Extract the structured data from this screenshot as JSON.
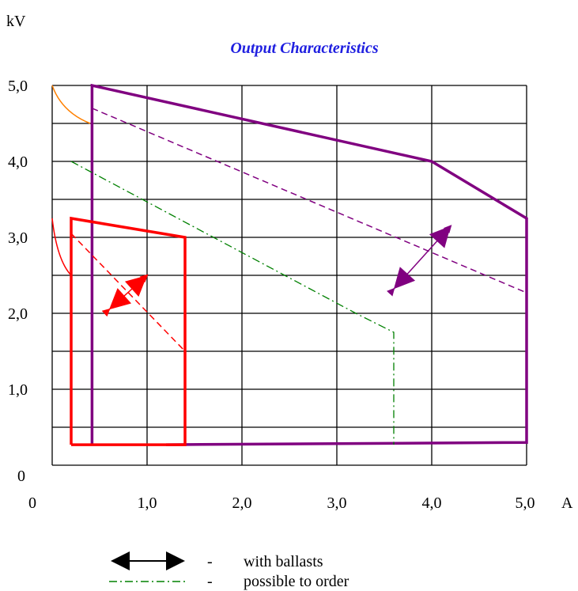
{
  "chart_data": {
    "type": "line",
    "title": "Output Characteristics",
    "ylabel": "kV",
    "xlabel": "A",
    "origin_label": "0",
    "x_origin_label": "0",
    "xlim": [
      0,
      5
    ],
    "ylim": [
      0,
      5
    ],
    "x_ticks": [
      "1,0",
      "2,0",
      "3,0",
      "4,0",
      "5,0"
    ],
    "y_ticks": [
      "1,0",
      "2,0",
      "3,0",
      "4,0",
      "5,0"
    ],
    "grid": true,
    "series": [
      {
        "style": "solid",
        "color": "#800080",
        "points": [
          [
            0.42,
            0.27
          ],
          [
            0.42,
            5.0
          ],
          [
            4.0,
            4.0
          ],
          [
            5.0,
            3.25
          ],
          [
            5.0,
            0.3
          ],
          [
            1.2,
            0.27
          ]
        ]
      },
      {
        "style": "dashed",
        "color": "#800080",
        "points": [
          [
            0.42,
            4.7
          ],
          [
            5.0,
            2.27
          ]
        ]
      },
      {
        "style": "solid",
        "color": "#ff0000",
        "points": [
          [
            0.2,
            0.27
          ],
          [
            0.2,
            3.25
          ],
          [
            1.4,
            3.0
          ],
          [
            1.4,
            0.27
          ],
          [
            0.2,
            0.27
          ]
        ]
      },
      {
        "style": "dashed",
        "color": "#ff0000",
        "points": [
          [
            0.2,
            3.05
          ],
          [
            1.4,
            1.5
          ]
        ]
      },
      {
        "style": "dash-dot",
        "color": "#008000",
        "points": [
          [
            0.2,
            4.0
          ],
          [
            3.2,
            2.0
          ],
          [
            3.6,
            1.75
          ],
          [
            3.6,
            0.27
          ]
        ]
      },
      {
        "style": "curve",
        "color": "#ff8000",
        "points": [
          [
            0.0,
            5.0
          ],
          [
            0.1,
            4.65
          ],
          [
            0.4,
            4.5
          ]
        ]
      },
      {
        "style": "curve",
        "color": "#ff0000",
        "points": [
          [
            0.0,
            3.25
          ],
          [
            0.05,
            2.7
          ],
          [
            0.2,
            2.5
          ]
        ]
      }
    ],
    "arrows": [
      {
        "color": "#800080",
        "from": [
          3.6,
          2.32
        ],
        "to": [
          4.2,
          3.15
        ]
      },
      {
        "color": "#ff0000",
        "from": [
          0.6,
          2.05
        ],
        "to": [
          1.0,
          2.5
        ]
      }
    ],
    "legend": [
      {
        "symbol": "double-arrow",
        "dash": "-",
        "label": "with ballasts"
      },
      {
        "symbol": "dash-dot-line",
        "dash": "-",
        "label": "possible to order"
      }
    ]
  }
}
